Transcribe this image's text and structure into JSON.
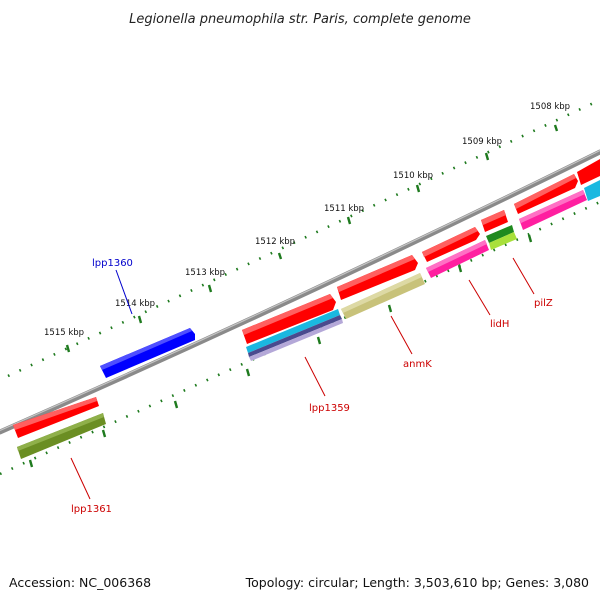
{
  "title": "Legionella pneumophila str. Paris, complete genome",
  "footer": {
    "accession": "Accession: NC_006368",
    "summary": "Topology: circular; Length: 3,503,610 bp; Genes: 3,080"
  },
  "kbp_labels": [
    "1508 kbp",
    "1509 kbp",
    "1510 kbp",
    "1511 kbp",
    "1512 kbp",
    "1513 kbp",
    "1514 kbp",
    "1515 kbp"
  ],
  "gene_labels": [
    {
      "text": "lpp1360",
      "color": "#0000cc"
    },
    {
      "text": "lpp1359",
      "color": "#cc0000"
    },
    {
      "text": "anmK",
      "color": "#cc0000"
    },
    {
      "text": "lidH",
      "color": "#cc0000"
    },
    {
      "text": "pilZ",
      "color": "#cc0000"
    },
    {
      "text": "lpp1361",
      "color": "#cc0000"
    }
  ],
  "colors": {
    "backbone": "#8a8a8a",
    "tick": "#1e7a1e",
    "forward_gene": "#ff0000",
    "reverse_gene": "#0000ff",
    "cog_magenta": "#ff1fa0",
    "cog_khaki": "#c8c27a",
    "cog_olive": "#6b8e23",
    "cog_cyan": "#1ab8e0",
    "cog_lime": "#a8e03a",
    "cog_lavender": "#b4a8d8",
    "cog_darkgreen": "#1f8a1f"
  }
}
